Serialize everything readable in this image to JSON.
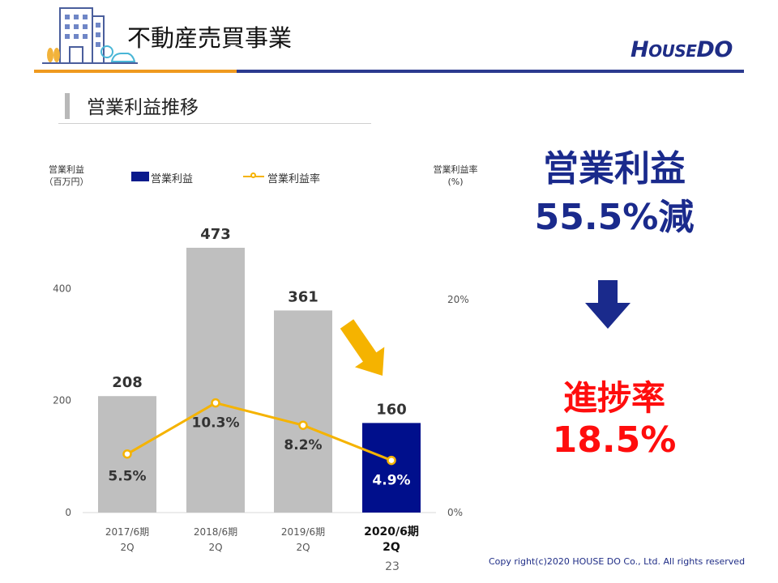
{
  "header": {
    "title": "不動産売買事業",
    "logo_text": "HOUSEDO"
  },
  "section": {
    "title": "営業利益推移"
  },
  "chart_axis_captions": {
    "left_line1": "営業利益",
    "left_line2": "（百万円）",
    "right_line1": "営業利益率",
    "right_line2": "(%)"
  },
  "chart_data": {
    "type": "bar",
    "categories": [
      {
        "line1": "2017/6期",
        "line2": "2Q"
      },
      {
        "line1": "2018/6期",
        "line2": "2Q"
      },
      {
        "line1": "2019/6期",
        "line2": "2Q"
      },
      {
        "line1": "2020/6期",
        "line2": "2Q"
      }
    ],
    "series": [
      {
        "name": "営業利益",
        "type": "bar",
        "axis": "left",
        "values": [
          208,
          473,
          361,
          160
        ],
        "labels": [
          "208",
          "473",
          "361",
          "160"
        ]
      },
      {
        "name": "営業利益率",
        "type": "line",
        "axis": "right",
        "values": [
          5.5,
          10.3,
          8.2,
          4.9
        ],
        "labels": [
          "5.5%",
          "10.3%",
          "8.2%",
          "4.9%"
        ]
      }
    ],
    "highlight_index": 3,
    "y_left": {
      "ylim": [
        0,
        580
      ],
      "ticks": [
        0,
        200,
        400
      ],
      "tick_labels": [
        "0",
        "200",
        "400"
      ]
    },
    "y_right": {
      "ylim": [
        0,
        30.5
      ],
      "ticks": [
        0,
        20
      ],
      "tick_labels": [
        "0%",
        "20%"
      ]
    },
    "colors": {
      "bar": "#bfbfbf",
      "bar_highlight": "#000f8c",
      "line": "#f5b300",
      "arrow": "#f5b300"
    },
    "grid": false,
    "legend_position": "top"
  },
  "summary": {
    "headline_label": "営業利益",
    "headline_value": "55.5%減",
    "progress_label": "進捗率",
    "progress_value": "18.5%"
  },
  "colors": {
    "brand_blue": "#1a2a8c",
    "accent_orange": "#ef9a1f",
    "alert_red": "#ff0d0d"
  },
  "footer": {
    "page_number": "23",
    "copyright": "Copy right(c)2020  HOUSE DO Co., Ltd.  All rights reserved"
  }
}
